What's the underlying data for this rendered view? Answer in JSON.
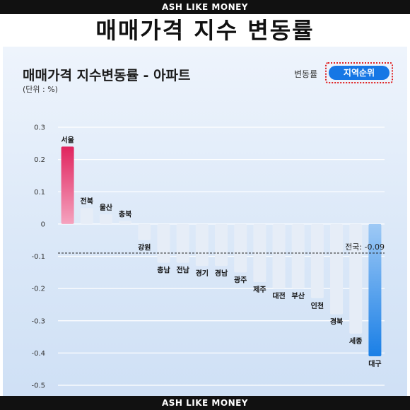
{
  "banner": {
    "top": "ASH LIKE MONEY",
    "bottom": "ASH LIKE MONEY"
  },
  "headline": "매매가격 지수 변동률",
  "card": {
    "title": "매매가격 지수변동률 - 아파트",
    "unit": "(단위 : %)",
    "toggle_label": "변동률",
    "rank_button": "지역순위"
  },
  "colors": {
    "positive_top": "#e0245e",
    "positive_bottom": "#f5a3bf",
    "negative_top": "#9ec9f5",
    "negative_bottom": "#1a7fe6",
    "faint_bar": "#e6edf7",
    "grid": "#ffffff"
  },
  "chart_data": {
    "type": "bar",
    "title": "매매가격 지수변동률 - 아파트",
    "ylabel": "(단위 : %)",
    "ylim": [
      -0.5,
      0.3
    ],
    "yticks": [
      0.3,
      0.2,
      0.1,
      0,
      -0.1,
      -0.2,
      -0.3,
      -0.4,
      -0.5
    ],
    "grid": true,
    "categories": [
      "서울",
      "전북",
      "울산",
      "충북",
      "강원",
      "충남",
      "전남",
      "경기",
      "경남",
      "광주",
      "제주",
      "대전",
      "부산",
      "인천",
      "경북",
      "세종",
      "대구"
    ],
    "values": [
      0.24,
      0.05,
      0.03,
      0.01,
      -0.05,
      -0.12,
      -0.12,
      -0.13,
      -0.13,
      -0.15,
      -0.18,
      -0.2,
      -0.2,
      -0.23,
      -0.28,
      -0.34,
      -0.41
    ],
    "highlight": [
      "서울",
      "대구"
    ],
    "reference": {
      "label": "전국: -0.09",
      "value": -0.09
    }
  }
}
